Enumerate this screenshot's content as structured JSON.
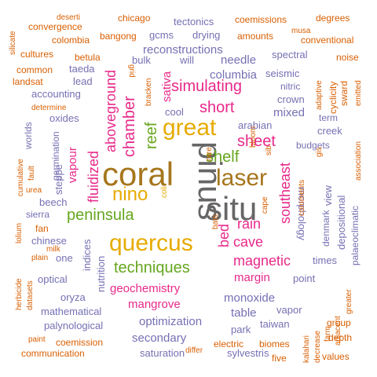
{
  "words": {
    "pinus": "pinus",
    "situ": "situ",
    "coral": "coral",
    "quercus": "quercus",
    "laser": "laser",
    "great": "great",
    "nino": "nino",
    "peninsula": "peninsula",
    "techniques": "techniques",
    "simulating": "simulating",
    "short": "short",
    "sheet": "sheet",
    "shelf": "shelf",
    "reef": "reef",
    "chamber": "chamber",
    "aboveground": "aboveground",
    "fluidized": "fluidized",
    "vapour": "vapour",
    "southeast": "southeast",
    "bed": "bed",
    "rain": "rain",
    "cave": "cave",
    "magnetic": "magnetic",
    "margin": "margin",
    "geochemistry": "geochemistry",
    "mangrove": "mangrove",
    "sativa": "sativa",
    "reconstructions": "reconstructions",
    "columbia": "columbia",
    "needle": "needle",
    "optimization": "optimization",
    "secondary": "secondary",
    "monoxide": "monoxide",
    "table": "table",
    "mixed": "mixed",
    "arabian": "arabian",
    "saturation": "saturation",
    "sylvestris": "sylvestris",
    "taiwan": "taiwan",
    "tectonics": "tectonics",
    "gcms": "gcms",
    "drying": "drying",
    "bulk": "bulk",
    "will": "will",
    "spectral": "spectral",
    "seismic": "seismic",
    "nitric": "nitric",
    "crown": "crown",
    "term": "term",
    "creek": "creek",
    "budgets": "budgets",
    "morphology": "morphology",
    "view": "view",
    "depositional": "depositional",
    "denmark": "denmark",
    "palaeoclimatic": "palaeoclimatic",
    "times": "times",
    "point": "point",
    "vapor": "vapor",
    "park": "park",
    "indices": "indices",
    "nutrition": "nutrition",
    "oryza": "oryza",
    "mathematical": "mathematical",
    "palynological": "palynological",
    "optical": "optical",
    "one": "one",
    "chinese": "chinese",
    "steppe": "steppe",
    "beech": "beech",
    "sierra": "sierra",
    "oxides": "oxides",
    "accounting": "accounting",
    "lead": "lead",
    "taeda": "taeda",
    "cool": "cool",
    "germination": "germination",
    "worlds": "worlds",
    "chicago": "chicago",
    "coemissions": "coemissions",
    "degrees": "degrees",
    "deserti": "deserti",
    "convergence": "convergence",
    "silicate": "silicate",
    "colombia": "colombia",
    "bangong": "bangong",
    "amounts": "amounts",
    "musa": "musa",
    "conventional": "conventional",
    "cultures": "cultures",
    "betula": "betula",
    "noise": "noise",
    "common": "common",
    "landsat": "landsat",
    "grid": "grid",
    "bracken": "bracken",
    "cyclicity": "cyclicity",
    "sward": "sward",
    "adaptive": "adaptive",
    "emitted": "emitted",
    "association": "association",
    "determine": "determine",
    "cumulative": "cumulative",
    "fault": "fault",
    "urea": "urea",
    "lolium": "lolium",
    "fan": "fan",
    "milk": "milk",
    "plain": "plain",
    "herbicide": "herbicide",
    "datasets": "datasets",
    "paint": "paint",
    "coemission": "coemission",
    "communication": "communication",
    "electric": "electric",
    "biomes": "biomes",
    "differ": "differ",
    "five": "five",
    "kalahari": "kalahari",
    "decrease": "decrease",
    "farm": "farm",
    "adjacent": "adjacent",
    "greater": "greater",
    "group": "group",
    "depth": "depth",
    "values": "values",
    "rare": "rare",
    "bloom": "bloom",
    "sib": "sib",
    "gis": "gis",
    "comments": "comments",
    "cape": "cape",
    "bats": "bats",
    "coli": "coli"
  },
  "palette": [
    "#D95F02",
    "#7570B3",
    "#E7298A",
    "#66A61E",
    "#E6AB02",
    "#A6761D",
    "#666666",
    "#1B9E77"
  ]
}
